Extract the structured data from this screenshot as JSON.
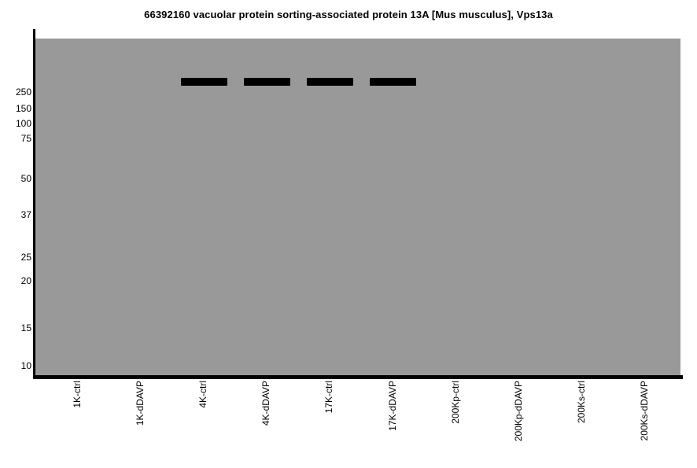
{
  "chart_data": {
    "type": "western_blot",
    "title": "66392160 vacuolar protein sorting-associated protein 13A [Mus musculus], Vps13a",
    "lanes": [
      "1K-ctrl",
      "1K-dDAVP",
      "4K-ctrl",
      "4K-dDAVP",
      "17K-ctrl",
      "17K-dDAVP",
      "200Kp-ctrl",
      "200Kp-dDAVP",
      "200Ks-ctrl",
      "200Ks-dDAVP"
    ],
    "mw_markers_kda": [
      "250",
      "150",
      "100",
      "75",
      "50",
      "37",
      "25",
      "20",
      "15",
      "10"
    ],
    "bands": [
      {
        "lane": "4K-ctrl",
        "mw_location": "above 250 kDa marker",
        "intensity": "strong"
      },
      {
        "lane": "4K-dDAVP",
        "mw_location": "above 250 kDa marker",
        "intensity": "strong"
      },
      {
        "lane": "17K-ctrl",
        "mw_location": "above 250 kDa marker",
        "intensity": "strong"
      },
      {
        "lane": "17K-dDAVP",
        "mw_location": "above 250 kDa marker",
        "intensity": "strong"
      }
    ],
    "legend": "none",
    "grid": "off",
    "colors": {
      "blot_background": "#999999",
      "band": "#000000",
      "axis": "#000000",
      "page_background": "#ffffff",
      "text": "#000000"
    }
  }
}
